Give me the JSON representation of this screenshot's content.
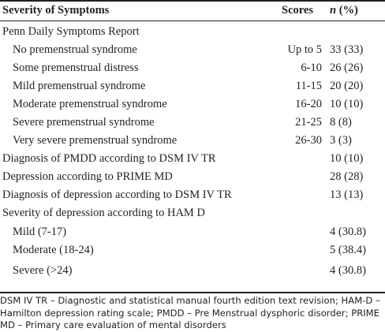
{
  "table": {
    "headers": {
      "label": "Severity of Symptoms",
      "scores": "Scores",
      "n_prefix": "n",
      "n_suffix": " (%)"
    },
    "rows": [
      {
        "label": "Penn Daily Symptoms Report",
        "score": "",
        "n": ""
      },
      {
        "label": "No premenstrual syndrome",
        "score": "Up to 5",
        "n": "33 (33)"
      },
      {
        "label": "Some premenstrual distress",
        "score": "6-10",
        "n": "26 (26)"
      },
      {
        "label": "Mild premenstrual syndrome",
        "score": "11-15",
        "n": "20 (20)"
      },
      {
        "label": "Moderate premenstrual syndrome",
        "score": "16-20",
        "n": "10 (10)"
      },
      {
        "label": "Severe premenstrual syndrome",
        "score": "21-25",
        "n": "8 (8)"
      },
      {
        "label": "Very severe premenstrual syndrome",
        "score": "26-30",
        "n": "3 (3)"
      },
      {
        "label": "Diagnosis of PMDD according to DSM IV TR",
        "score": "",
        "n": "10 (10)"
      },
      {
        "label": "Depression according to PRIME MD",
        "score": "",
        "n": "28 (28)"
      },
      {
        "label": "Diagnosis of depression according to DSM IV TR",
        "score": "",
        "n": "13 (13)"
      },
      {
        "label": "Severity of depression according to HAM D",
        "score": "",
        "n": ""
      },
      {
        "label": "Mild (7-17)",
        "score": "",
        "n": "4 (30.8)"
      },
      {
        "label": "Moderate (18-24)",
        "score": "",
        "n": "5 (38.4)"
      },
      {
        "label": "Severe (>24)",
        "score": "",
        "n": "4 (30.8)"
      }
    ]
  },
  "footnote": "DSM IV TR – Diagnostic and statistical manual fourth edition text revision; HAM-D – Hamilton depression rating scale; PMDD – Pre Menstrual dysphoric disorder; PRIME MD – Primary care evaluation of mental disorders"
}
